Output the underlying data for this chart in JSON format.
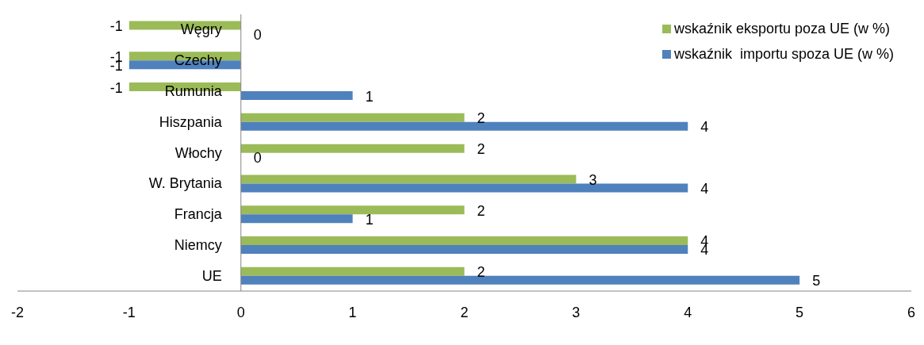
{
  "chart_data": {
    "type": "bar",
    "orientation": "horizontal",
    "categories": [
      "Węgry",
      "Czechy",
      "Rumunia",
      "Hiszpania",
      "Włochy",
      "W. Brytania",
      "Francja",
      "Niemcy",
      "UE"
    ],
    "series": [
      {
        "name": "wskaźnik eksportu poza UE (w %)",
        "color": "#9bbb59",
        "values": [
          -1,
          -1,
          -1,
          2,
          2,
          3,
          2,
          4,
          2
        ]
      },
      {
        "name": "wskaźnik  importu spoza UE (w %)",
        "color": "#4f81bd",
        "values": [
          0,
          -1,
          1,
          4,
          0,
          4,
          1,
          4,
          5
        ]
      }
    ],
    "xlim": [
      -2,
      6
    ],
    "xticks": [
      -2,
      -1,
      0,
      1,
      2,
      3,
      4,
      5,
      6
    ],
    "data_labels": true,
    "legend": "top right"
  }
}
